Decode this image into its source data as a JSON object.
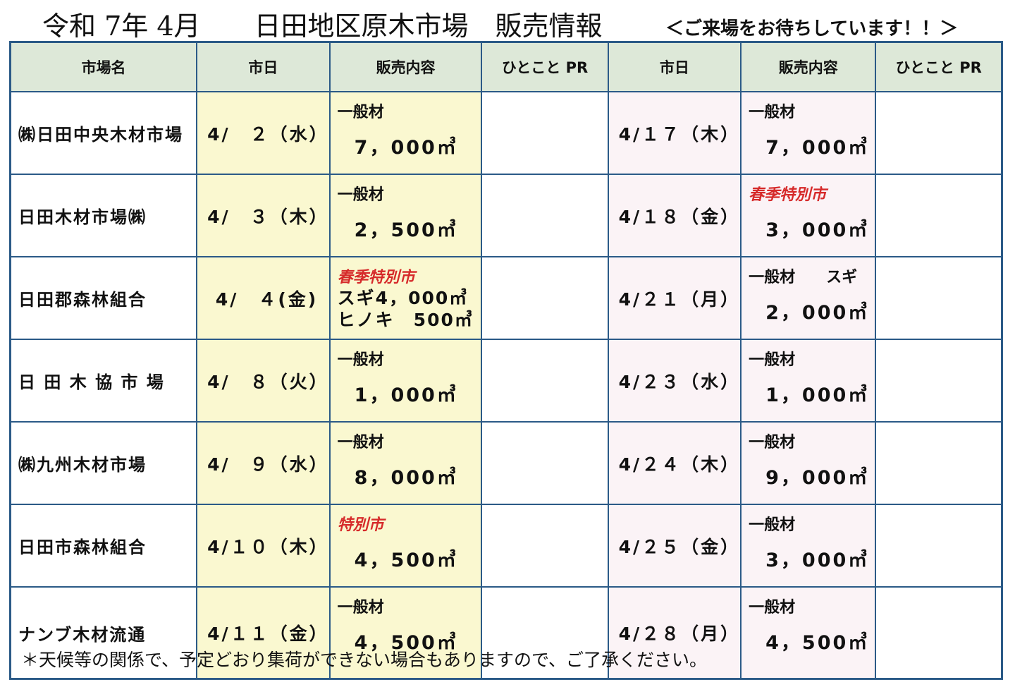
{
  "title": "令和 7年 4月　　日田地区原木市場　販売情報",
  "subtitle": "＜ご来場をお待ちしています！！＞",
  "headers": [
    "市場名",
    "市日",
    "販売内容",
    "ひとこと PR",
    "市日",
    "販売内容",
    "ひとこと PR"
  ],
  "rows": [
    {
      "name": "㈱日田中央木材市場",
      "date1": "4/　２（水）",
      "c1": {
        "label": "一般材",
        "red": false,
        "amount": "7，000㎥"
      },
      "pr1": "",
      "date2": "4/１７（木）",
      "c2": {
        "label": "一般材",
        "red": false,
        "amount": "7，000㎥"
      },
      "pr2": ""
    },
    {
      "name": "日田木材市場㈱",
      "date1": "4/　３（木）",
      "c1": {
        "label": "一般材",
        "red": false,
        "amount": "2，500㎥"
      },
      "pr1": "",
      "date2": "4/１８（金）",
      "c2": {
        "label": "春季特別市",
        "red": true,
        "amount": "3，000㎥"
      },
      "pr2": ""
    },
    {
      "name": "日田郡森林組合",
      "date1": " 4/　４(金)",
      "c1": {
        "label": "春季特別市",
        "red": true,
        "lines": [
          "スギ4，000㎥",
          "ヒノキ　500㎥"
        ]
      },
      "pr1": "",
      "date2": "4/２１（月）",
      "c2": {
        "label": "一般材　　スギ",
        "red": false,
        "amount": "2，000㎥"
      },
      "pr2": ""
    },
    {
      "name": "日 田 木 協 市 場",
      "date1": "4/　８（火）",
      "c1": {
        "label": "一般材",
        "red": false,
        "amount": "1，000㎥"
      },
      "pr1": "",
      "date2": "4/２３（水）",
      "c2": {
        "label": "一般材",
        "red": false,
        "amount": "1，000㎥"
      },
      "pr2": ""
    },
    {
      "name": "㈱九州木材市場",
      "date1": "4/　９（水）",
      "c1": {
        "label": "一般材",
        "red": false,
        "amount": "8，000㎥"
      },
      "pr1": "",
      "date2": "4/２４（木）",
      "c2": {
        "label": "一般材",
        "red": false,
        "amount": "9，000㎥"
      },
      "pr2": ""
    },
    {
      "name": "日田市森林組合",
      "date1": "4/１０（木）",
      "c1": {
        "label": "特別市",
        "red": true,
        "amount": "4，500㎥"
      },
      "pr1": "",
      "date2": "4/２５（金）",
      "c2": {
        "label": "一般材",
        "red": false,
        "amount": "3，000㎥"
      },
      "pr2": ""
    },
    {
      "name": "ナンブ木材流通",
      "date1": "4/１１（金）",
      "c1": {
        "label": "一般材",
        "red": false,
        "amount": "4，500㎥"
      },
      "pr1": "",
      "date2": "4/２８（月）",
      "c2": {
        "label": "一般材",
        "red": false,
        "amount": "4，500㎥"
      },
      "pr2": ""
    }
  ],
  "note": "＊天候等の関係で、予定どおり集荷ができない場合もありますので、ご了承ください。",
  "colors": {
    "header_bg": "#dde8d8",
    "first_half_bg": "#faf8d0",
    "second_half_bg": "#fbf3f6",
    "border": "#2b5a87",
    "special_label": "#d62a2a"
  }
}
